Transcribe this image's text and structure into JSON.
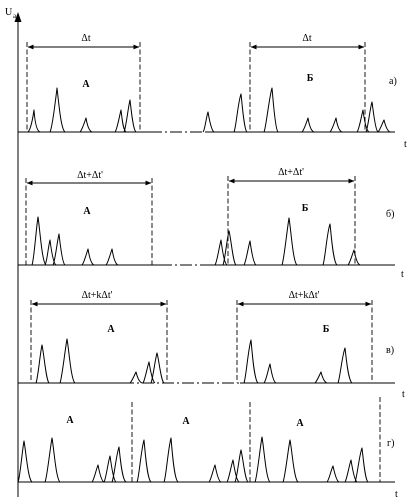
{
  "figure": {
    "y_axis_label": "U",
    "y_axis_subscript": "a",
    "time_label": "t"
  },
  "panels": [
    {
      "label": "а)",
      "interval_labels": [
        "Δt",
        "Δt"
      ],
      "group_labels": [
        "А",
        "Б"
      ]
    },
    {
      "label": "б)",
      "interval_labels": [
        "Δt+Δt'",
        "Δt+Δt'"
      ],
      "group_labels": [
        "А",
        "Б"
      ]
    },
    {
      "label": "в)",
      "interval_labels": [
        "Δt+kΔt'",
        "Δt+kΔt'"
      ],
      "group_labels": [
        "А",
        "Б"
      ]
    },
    {
      "label": "г)",
      "interval_labels": [],
      "group_labels": [
        "А",
        "А",
        "А"
      ]
    }
  ]
}
